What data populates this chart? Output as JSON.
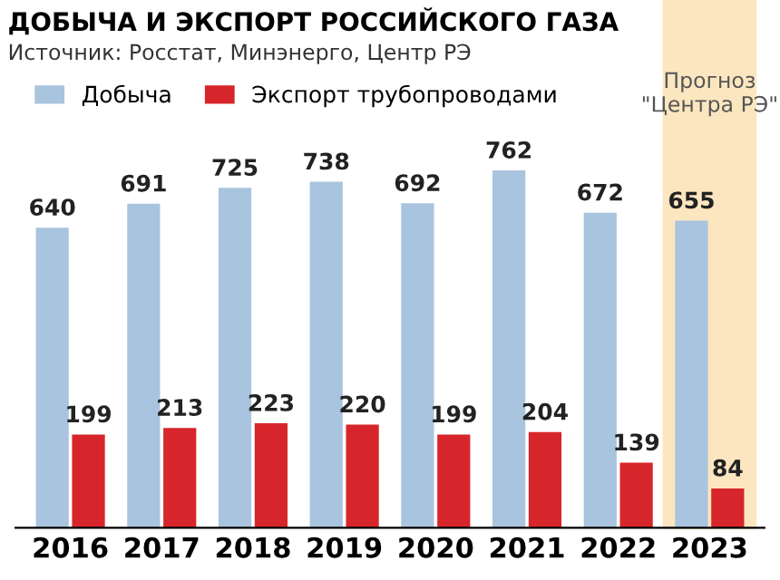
{
  "chart_data": {
    "type": "bar",
    "title": "ДОБЫЧА И ЭКСПОРТ РОССИЙСКОГО ГАЗА",
    "subtitle": "Источник: Росстат, Минэнерго, Центр РЭ",
    "categories": [
      "2016",
      "2017",
      "2018",
      "2019",
      "2020",
      "2021",
      "2022",
      "2023"
    ],
    "series": [
      {
        "name": "Добыча",
        "color": "#a9c4de",
        "values": [
          640,
          691,
          725,
          738,
          692,
          762,
          672,
          655
        ]
      },
      {
        "name": "Экспорт трубопроводами",
        "color": "#d7262b",
        "values": [
          199,
          213,
          223,
          220,
          199,
          204,
          139,
          84
        ]
      }
    ],
    "bands": [
      {
        "axis": "x",
        "from": "2023",
        "to": "2023",
        "label": "Прогноз\n\"Центра РЭ\"",
        "color": "#fbe6bf"
      }
    ],
    "data_labels": true,
    "legend": "top left",
    "grid": false
  }
}
